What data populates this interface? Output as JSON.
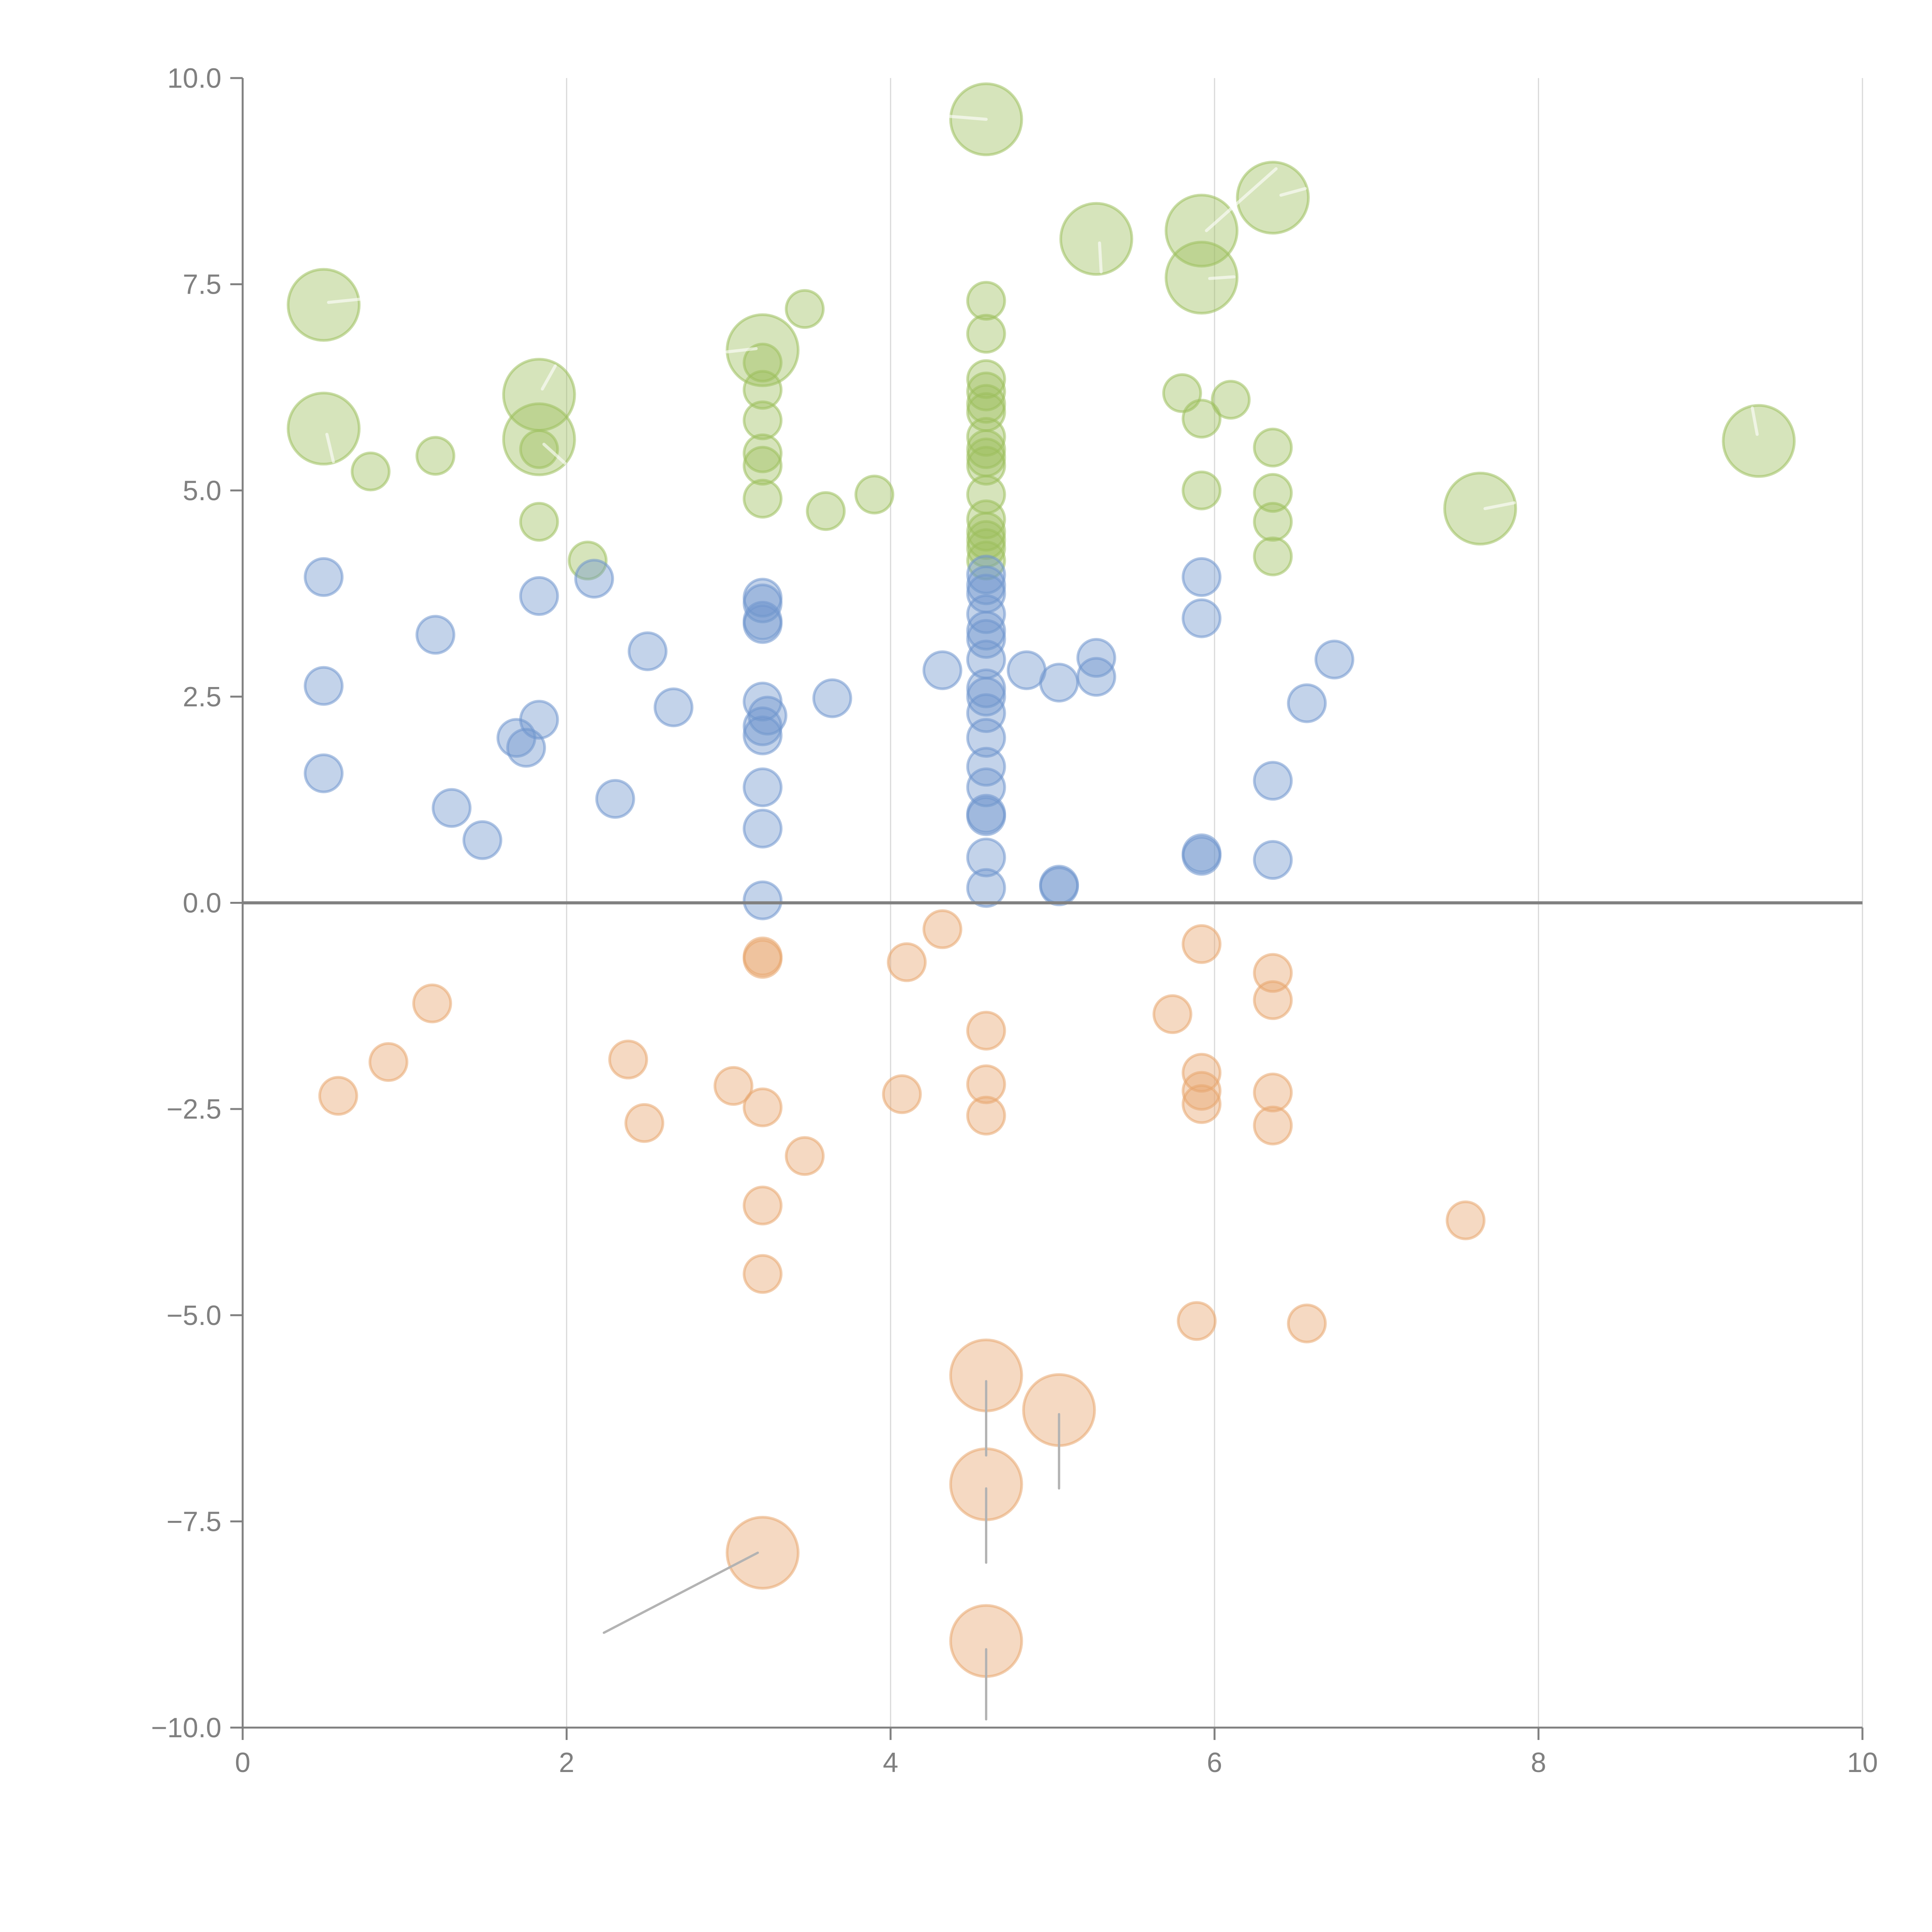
{
  "chart_data": {
    "type": "scatter",
    "title": "",
    "xlabel": "",
    "ylabel": "",
    "xlim": [
      0,
      10
    ],
    "ylim": [
      -10,
      10
    ],
    "x_ticks": [
      "0",
      "2",
      "4",
      "6",
      "8",
      "10"
    ],
    "x_tick_values": [
      0,
      2,
      4,
      6,
      8,
      10
    ],
    "y_ticks": [
      "10.0",
      "7.5",
      "5.0",
      "2.5",
      "0.0",
      "−2.5",
      "−5.0",
      "−7.5",
      "−10.0"
    ],
    "y_tick_values": [
      10,
      7.5,
      5,
      2.5,
      0,
      -2.5,
      -5,
      -7.5,
      -10
    ],
    "grid": "vertical",
    "zero_line": true,
    "legend": "none",
    "series": [
      {
        "name": "green",
        "color": "#9dbf5c",
        "points": [
          {
            "x": 0.5,
            "y": 7.25,
            "size": "large"
          },
          {
            "x": 0.5,
            "y": 5.75,
            "size": "large"
          },
          {
            "x": 0.79,
            "y": 5.23,
            "size": "small"
          },
          {
            "x": 1.19,
            "y": 5.42,
            "size": "small"
          },
          {
            "x": 1.83,
            "y": 6.16,
            "size": "large"
          },
          {
            "x": 1.83,
            "y": 5.62,
            "size": "large"
          },
          {
            "x": 1.83,
            "y": 5.5,
            "size": "small"
          },
          {
            "x": 1.83,
            "y": 4.62,
            "size": "small"
          },
          {
            "x": 2.13,
            "y": 4.15,
            "size": "small"
          },
          {
            "x": 3.21,
            "y": 6.7,
            "size": "large"
          },
          {
            "x": 3.21,
            "y": 6.55,
            "size": "small"
          },
          {
            "x": 3.21,
            "y": 6.22,
            "size": "small"
          },
          {
            "x": 3.21,
            "y": 5.85,
            "size": "small"
          },
          {
            "x": 3.21,
            "y": 5.45,
            "size": "small"
          },
          {
            "x": 3.21,
            "y": 5.3,
            "size": "small"
          },
          {
            "x": 3.21,
            "y": 4.9,
            "size": "small"
          },
          {
            "x": 3.47,
            "y": 7.2,
            "size": "small"
          },
          {
            "x": 3.6,
            "y": 4.75,
            "size": "small"
          },
          {
            "x": 3.9,
            "y": 4.95,
            "size": "small"
          },
          {
            "x": 4.59,
            "y": 9.5,
            "size": "large"
          },
          {
            "x": 4.59,
            "y": 7.3,
            "size": "small"
          },
          {
            "x": 4.59,
            "y": 6.9,
            "size": "small"
          },
          {
            "x": 4.59,
            "y": 6.35,
            "size": "small"
          },
          {
            "x": 4.59,
            "y": 6.2,
            "size": "small"
          },
          {
            "x": 4.59,
            "y": 6.05,
            "size": "small"
          },
          {
            "x": 4.59,
            "y": 5.95,
            "size": "small"
          },
          {
            "x": 4.59,
            "y": 5.65,
            "size": "small"
          },
          {
            "x": 4.59,
            "y": 5.5,
            "size": "small"
          },
          {
            "x": 4.59,
            "y": 5.4,
            "size": "small"
          },
          {
            "x": 4.59,
            "y": 5.3,
            "size": "small"
          },
          {
            "x": 4.59,
            "y": 4.95,
            "size": "small"
          },
          {
            "x": 4.59,
            "y": 4.65,
            "size": "small"
          },
          {
            "x": 4.59,
            "y": 4.5,
            "size": "small"
          },
          {
            "x": 4.59,
            "y": 4.4,
            "size": "small"
          },
          {
            "x": 4.59,
            "y": 4.3,
            "size": "small"
          },
          {
            "x": 4.59,
            "y": 4.15,
            "size": "small"
          },
          {
            "x": 5.27,
            "y": 8.05,
            "size": "large"
          },
          {
            "x": 5.8,
            "y": 6.18,
            "size": "small"
          },
          {
            "x": 5.92,
            "y": 5.87,
            "size": "small"
          },
          {
            "x": 6.1,
            "y": 6.1,
            "size": "small"
          },
          {
            "x": 5.92,
            "y": 5.0,
            "size": "small"
          },
          {
            "x": 5.92,
            "y": 8.15,
            "size": "large"
          },
          {
            "x": 5.92,
            "y": 7.58,
            "size": "large"
          },
          {
            "x": 6.36,
            "y": 8.55,
            "size": "large"
          },
          {
            "x": 6.36,
            "y": 5.52,
            "size": "small"
          },
          {
            "x": 6.36,
            "y": 4.97,
            "size": "small"
          },
          {
            "x": 6.36,
            "y": 4.62,
            "size": "small"
          },
          {
            "x": 6.36,
            "y": 4.2,
            "size": "small"
          },
          {
            "x": 7.64,
            "y": 4.78,
            "size": "large"
          },
          {
            "x": 9.36,
            "y": 5.6,
            "size": "large"
          }
        ]
      },
      {
        "name": "blue",
        "color": "#6f96cd",
        "points": [
          {
            "x": 0.5,
            "y": 3.95,
            "size": "small"
          },
          {
            "x": 0.5,
            "y": 2.63,
            "size": "small"
          },
          {
            "x": 0.5,
            "y": 1.57,
            "size": "small"
          },
          {
            "x": 1.19,
            "y": 3.25,
            "size": "small"
          },
          {
            "x": 1.29,
            "y": 1.15,
            "size": "small"
          },
          {
            "x": 1.48,
            "y": 0.76,
            "size": "small"
          },
          {
            "x": 1.69,
            "y": 2.0,
            "size": "small"
          },
          {
            "x": 1.75,
            "y": 1.88,
            "size": "small"
          },
          {
            "x": 1.83,
            "y": 3.72,
            "size": "small"
          },
          {
            "x": 1.83,
            "y": 2.22,
            "size": "small"
          },
          {
            "x": 2.17,
            "y": 3.93,
            "size": "small"
          },
          {
            "x": 2.3,
            "y": 1.26,
            "size": "small"
          },
          {
            "x": 2.5,
            "y": 3.05,
            "size": "small"
          },
          {
            "x": 2.66,
            "y": 2.37,
            "size": "small"
          },
          {
            "x": 3.21,
            "y": 3.7,
            "size": "small"
          },
          {
            "x": 3.21,
            "y": 3.63,
            "size": "small"
          },
          {
            "x": 3.21,
            "y": 3.42,
            "size": "small"
          },
          {
            "x": 3.21,
            "y": 3.38,
            "size": "small"
          },
          {
            "x": 3.21,
            "y": 2.44,
            "size": "small"
          },
          {
            "x": 3.24,
            "y": 2.27,
            "size": "small"
          },
          {
            "x": 3.21,
            "y": 2.14,
            "size": "small"
          },
          {
            "x": 3.21,
            "y": 2.03,
            "size": "small"
          },
          {
            "x": 3.21,
            "y": 1.4,
            "size": "small"
          },
          {
            "x": 3.21,
            "y": 0.9,
            "size": "small"
          },
          {
            "x": 3.21,
            "y": 0.03,
            "size": "small"
          },
          {
            "x": 3.64,
            "y": 2.48,
            "size": "small"
          },
          {
            "x": 4.32,
            "y": 2.82,
            "size": "small"
          },
          {
            "x": 4.84,
            "y": 2.82,
            "size": "small"
          },
          {
            "x": 4.59,
            "y": 3.98,
            "size": "small"
          },
          {
            "x": 4.59,
            "y": 3.85,
            "size": "small"
          },
          {
            "x": 4.59,
            "y": 3.75,
            "size": "small"
          },
          {
            "x": 4.59,
            "y": 3.5,
            "size": "small"
          },
          {
            "x": 4.59,
            "y": 3.3,
            "size": "small"
          },
          {
            "x": 4.59,
            "y": 3.2,
            "size": "small"
          },
          {
            "x": 4.59,
            "y": 2.95,
            "size": "small"
          },
          {
            "x": 4.59,
            "y": 2.6,
            "size": "small"
          },
          {
            "x": 4.59,
            "y": 2.5,
            "size": "small"
          },
          {
            "x": 4.59,
            "y": 2.3,
            "size": "small"
          },
          {
            "x": 4.59,
            "y": 2.0,
            "size": "small"
          },
          {
            "x": 4.59,
            "y": 1.65,
            "size": "small"
          },
          {
            "x": 4.59,
            "y": 1.4,
            "size": "small"
          },
          {
            "x": 4.59,
            "y": 1.08,
            "size": "small"
          },
          {
            "x": 4.59,
            "y": 1.05,
            "size": "small"
          },
          {
            "x": 4.59,
            "y": 0.55,
            "size": "small"
          },
          {
            "x": 4.59,
            "y": 0.18,
            "size": "small"
          },
          {
            "x": 5.04,
            "y": 0.22,
            "size": "small"
          },
          {
            "x": 5.04,
            "y": 0.2,
            "size": "small"
          },
          {
            "x": 5.04,
            "y": 2.67,
            "size": "small"
          },
          {
            "x": 5.27,
            "y": 2.97,
            "size": "small"
          },
          {
            "x": 5.27,
            "y": 2.74,
            "size": "small"
          },
          {
            "x": 5.92,
            "y": 3.95,
            "size": "small"
          },
          {
            "x": 5.92,
            "y": 3.45,
            "size": "small"
          },
          {
            "x": 5.92,
            "y": 0.6,
            "size": "small"
          },
          {
            "x": 5.92,
            "y": 0.57,
            "size": "small"
          },
          {
            "x": 6.36,
            "y": 1.48,
            "size": "small"
          },
          {
            "x": 6.36,
            "y": 0.52,
            "size": "small"
          },
          {
            "x": 6.57,
            "y": 2.42,
            "size": "small"
          },
          {
            "x": 6.74,
            "y": 2.95,
            "size": "small"
          }
        ]
      },
      {
        "name": "orange",
        "color": "#e8a56e",
        "points": [
          {
            "x": 0.59,
            "y": -2.34,
            "size": "small"
          },
          {
            "x": 0.9,
            "y": -1.93,
            "size": "small"
          },
          {
            "x": 1.17,
            "y": -1.22,
            "size": "small"
          },
          {
            "x": 2.38,
            "y": -1.9,
            "size": "small"
          },
          {
            "x": 2.48,
            "y": -2.67,
            "size": "small"
          },
          {
            "x": 3.03,
            "y": -2.22,
            "size": "small"
          },
          {
            "x": 3.21,
            "y": -0.65,
            "size": "small"
          },
          {
            "x": 3.21,
            "y": -0.68,
            "size": "small"
          },
          {
            "x": 3.21,
            "y": -2.48,
            "size": "small"
          },
          {
            "x": 3.47,
            "y": -3.07,
            "size": "small"
          },
          {
            "x": 3.21,
            "y": -3.67,
            "size": "small"
          },
          {
            "x": 3.21,
            "y": -4.5,
            "size": "small"
          },
          {
            "x": 3.21,
            "y": -7.88,
            "size": "large"
          },
          {
            "x": 4.07,
            "y": -2.32,
            "size": "small"
          },
          {
            "x": 4.1,
            "y": -0.72,
            "size": "small"
          },
          {
            "x": 4.32,
            "y": -0.32,
            "size": "small"
          },
          {
            "x": 4.59,
            "y": -1.55,
            "size": "small"
          },
          {
            "x": 4.59,
            "y": -2.2,
            "size": "small"
          },
          {
            "x": 4.59,
            "y": -2.58,
            "size": "small"
          },
          {
            "x": 4.59,
            "y": -5.73,
            "size": "large"
          },
          {
            "x": 4.59,
            "y": -7.05,
            "size": "large"
          },
          {
            "x": 4.59,
            "y": -8.95,
            "size": "large"
          },
          {
            "x": 5.04,
            "y": -6.15,
            "size": "large"
          },
          {
            "x": 5.74,
            "y": -1.35,
            "size": "small"
          },
          {
            "x": 5.92,
            "y": -0.5,
            "size": "small"
          },
          {
            "x": 5.92,
            "y": -2.06,
            "size": "small"
          },
          {
            "x": 5.92,
            "y": -2.28,
            "size": "small"
          },
          {
            "x": 5.92,
            "y": -2.44,
            "size": "small"
          },
          {
            "x": 5.89,
            "y": -5.07,
            "size": "small"
          },
          {
            "x": 6.36,
            "y": -0.85,
            "size": "small"
          },
          {
            "x": 6.36,
            "y": -1.18,
            "size": "small"
          },
          {
            "x": 6.36,
            "y": -2.3,
            "size": "small"
          },
          {
            "x": 6.36,
            "y": -2.7,
            "size": "small"
          },
          {
            "x": 6.57,
            "y": -5.1,
            "size": "small"
          },
          {
            "x": 7.55,
            "y": -3.85,
            "size": "small"
          }
        ]
      }
    ],
    "annotation_leaders": [
      {
        "from": [
          2.23,
          -8.85
        ],
        "to": [
          3.18,
          -7.88
        ],
        "tone": "gray"
      },
      {
        "from": [
          4.59,
          -5.8
        ],
        "to": [
          4.59,
          -6.7
        ],
        "tone": "gray"
      },
      {
        "from": [
          4.59,
          -7.1
        ],
        "to": [
          4.59,
          -8.0
        ],
        "tone": "gray"
      },
      {
        "from": [
          4.59,
          -9.05
        ],
        "to": [
          4.59,
          -9.9
        ],
        "tone": "gray"
      },
      {
        "from": [
          5.04,
          -6.2
        ],
        "to": [
          5.04,
          -7.1
        ],
        "tone": "gray"
      },
      {
        "from": [
          4.59,
          9.5
        ],
        "to": [
          4.15,
          9.57
        ],
        "tone": "light"
      },
      {
        "from": [
          0.53,
          7.28
        ],
        "to": [
          0.73,
          7.32
        ],
        "tone": "light"
      },
      {
        "from": [
          0.52,
          5.68
        ],
        "to": [
          0.56,
          5.35
        ],
        "tone": "light"
      },
      {
        "from": [
          1.85,
          6.23
        ],
        "to": [
          1.93,
          6.51
        ],
        "tone": "light"
      },
      {
        "from": [
          1.86,
          5.56
        ],
        "to": [
          1.99,
          5.33
        ],
        "tone": "light"
      },
      {
        "from": [
          3.17,
          6.72
        ],
        "to": [
          2.99,
          6.68
        ],
        "tone": "light"
      },
      {
        "from": [
          5.29,
          8.0
        ],
        "to": [
          5.3,
          7.65
        ],
        "tone": "light"
      },
      {
        "from": [
          5.95,
          8.15
        ],
        "to": [
          6.38,
          8.9
        ],
        "tone": "light"
      },
      {
        "from": [
          5.97,
          7.57
        ],
        "to": [
          6.12,
          7.59
        ],
        "tone": "light"
      },
      {
        "from": [
          6.41,
          8.58
        ],
        "to": [
          6.56,
          8.66
        ],
        "tone": "light"
      },
      {
        "from": [
          7.67,
          4.78
        ],
        "to": [
          7.85,
          4.85
        ],
        "tone": "light"
      },
      {
        "from": [
          9.35,
          5.68
        ],
        "to": [
          9.32,
          6.0
        ],
        "tone": "light"
      }
    ]
  }
}
